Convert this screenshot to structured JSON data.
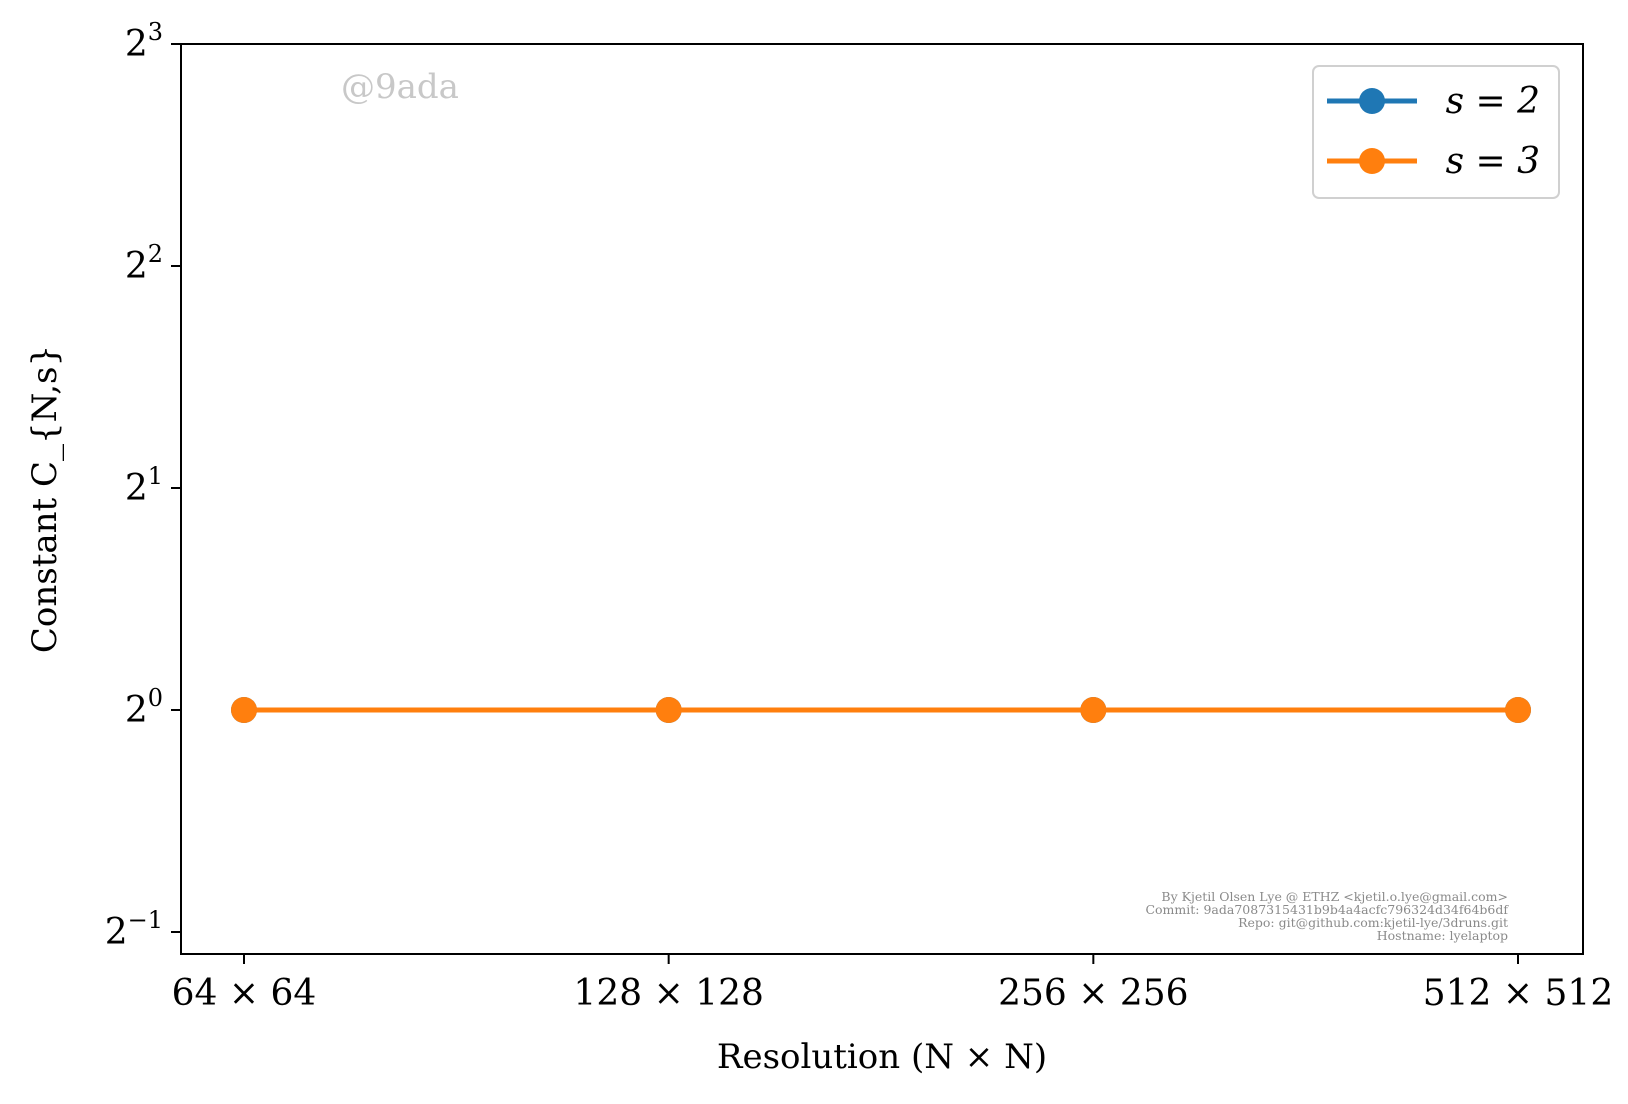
{
  "chart_data": {
    "type": "line",
    "xlabel": "Resolution (N × N)",
    "ylabel": "Constant C_{N,s}",
    "categories": [
      "64 × 64",
      "128 × 128",
      "256 × 256",
      "512 × 512"
    ],
    "y_scale": "log2",
    "ylim": [
      -1,
      3
    ],
    "y_ticks": [
      {
        "exp": -1,
        "base": "2",
        "sup": "−1"
      },
      {
        "exp": 0,
        "base": "2",
        "sup": "0"
      },
      {
        "exp": 1,
        "base": "2",
        "sup": "1"
      },
      {
        "exp": 2,
        "base": "2",
        "sup": "2"
      },
      {
        "exp": 3,
        "base": "2",
        "sup": "3"
      }
    ],
    "series": [
      {
        "name": "s = 2",
        "color": "#1f77b4",
        "values": [
          1,
          1,
          1,
          1
        ]
      },
      {
        "name": "s = 3",
        "color": "#ff7f0e",
        "values": [
          1,
          1,
          1,
          1
        ]
      }
    ],
    "legend_position": "top-right",
    "grid": false
  },
  "watermark": "@9ada",
  "credits": [
    "By Kjetil Olsen Lye @ ETHZ <kjetil.o.lye@gmail.com>",
    "Commit: 9ada7087315431b9b4a4acfc796324d34f64b6df",
    "Repo: git@github.com:kjetil-lye/3druns.git",
    "Hostname: lyelaptop"
  ]
}
